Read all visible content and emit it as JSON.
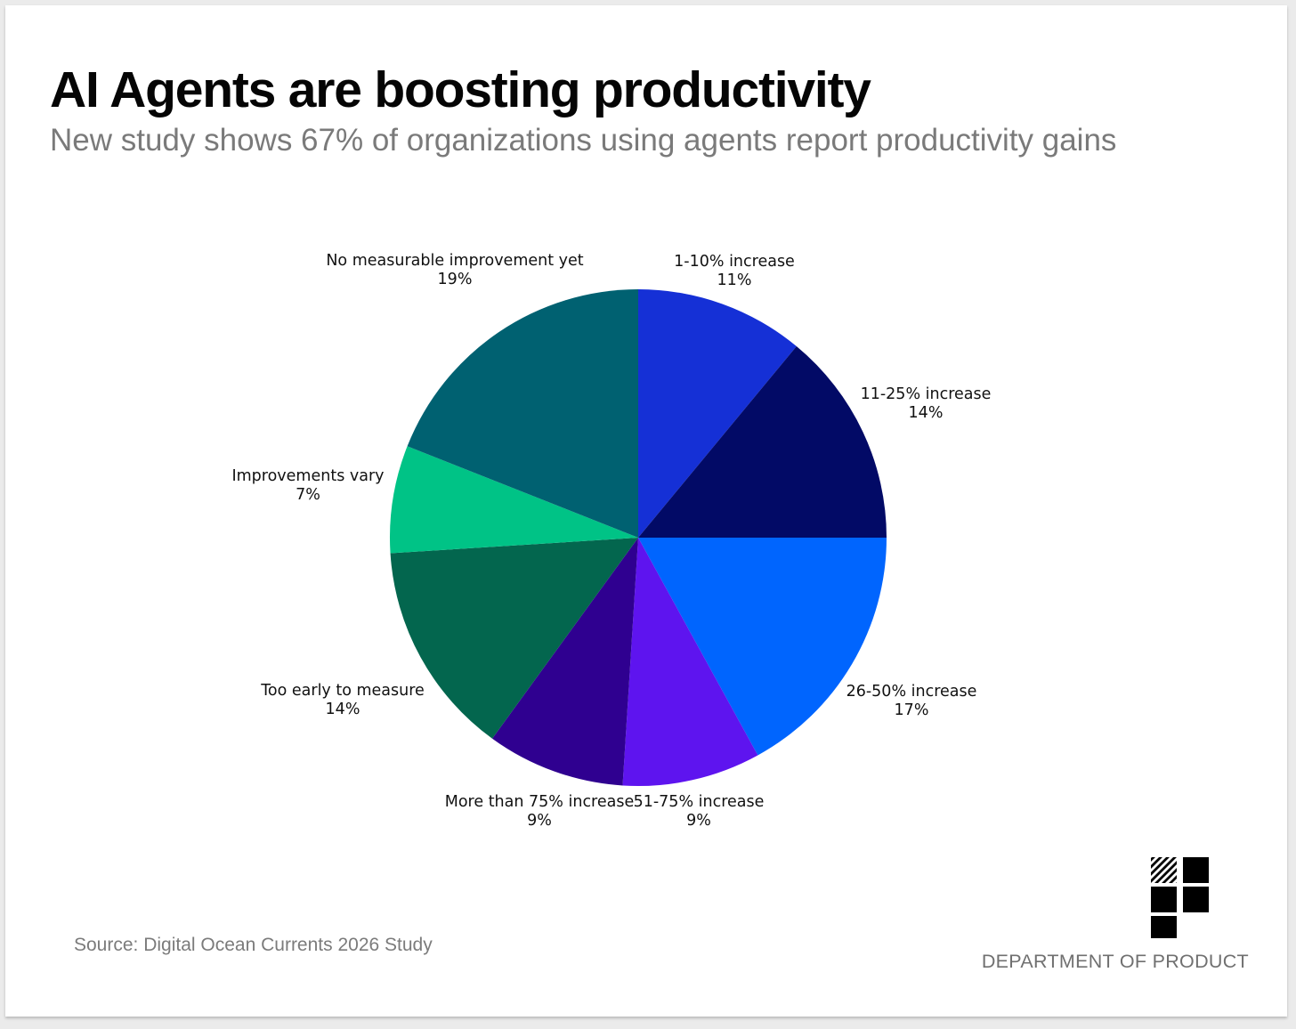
{
  "header": {
    "title": "AI Agents are boosting productivity",
    "subtitle": "New study shows 67% of organizations using agents report productivity gains"
  },
  "footer": {
    "source": "Source: Digital Ocean Currents 2026 Study",
    "brand": "DEPARTMENT OF PRODUCT",
    "logo_icon": "department-of-product-logo-icon"
  },
  "chart_data": {
    "type": "pie",
    "title": "AI Agents are boosting productivity",
    "start_angle": "12 o'clock",
    "direction": "clockwise",
    "slices": [
      {
        "label": "1-10% increase",
        "value": 11,
        "value_label": "11%",
        "color": "#1530d6"
      },
      {
        "label": "11-25% increase",
        "value": 14,
        "value_label": "14%",
        "color": "#020a66"
      },
      {
        "label": "26-50% increase",
        "value": 17,
        "value_label": "17%",
        "color": "#0065fe"
      },
      {
        "label": "51-75% increase",
        "value": 9,
        "value_label": "9%",
        "color": "#5e14ef"
      },
      {
        "label": "More than 75% increase",
        "value": 9,
        "value_label": "9%",
        "color": "#2f0090"
      },
      {
        "label": "Too early to measure",
        "value": 14,
        "value_label": "14%",
        "color": "#03664e"
      },
      {
        "label": "Improvements vary",
        "value": 7,
        "value_label": "7%",
        "color": "#00c386"
      },
      {
        "label": "No measurable improvement yet",
        "value": 19,
        "value_label": "19%",
        "color": "#006171"
      }
    ]
  }
}
